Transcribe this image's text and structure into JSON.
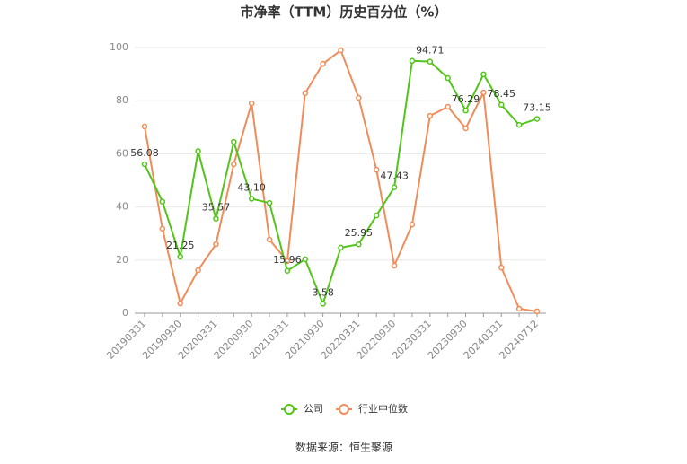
{
  "chart_data": {
    "type": "line",
    "title": "市净率（TTM）历史百分位（%）",
    "categories": [
      "20190331",
      null,
      "20190930",
      null,
      "20200331",
      null,
      "20200930",
      null,
      "20210331",
      null,
      "20210930",
      null,
      "20220331",
      null,
      "20220930",
      null,
      "20230331",
      null,
      "20230930",
      null,
      "20240331",
      null,
      "20240712"
    ],
    "series": [
      {
        "name": "公司",
        "color": "#52c41a",
        "values": [
          56.08,
          42,
          21.25,
          61,
          35.57,
          64.5,
          43.1,
          41.5,
          15.96,
          20.3,
          3.58,
          24.7,
          25.95,
          36.8,
          47.43,
          95.0,
          94.71,
          88.5,
          76.29,
          89.9,
          78.45,
          70.9,
          73.15
        ],
        "value_labels": [
          "56.08",
          null,
          "21.25",
          null,
          "35.57",
          null,
          "43.10",
          null,
          "15.96",
          null,
          "3.58",
          null,
          "25.95",
          null,
          "47.43",
          null,
          "94.71",
          null,
          "76.29",
          null,
          "78.45",
          null,
          "73.15"
        ]
      },
      {
        "name": "行业中位数",
        "color": "#f08c5a",
        "values": [
          70.3,
          31.8,
          3.7,
          16.2,
          26,
          56.1,
          79,
          27.7,
          19.6,
          82.8,
          93.9,
          99,
          81.1,
          54,
          17.9,
          33.4,
          74.3,
          77.7,
          69.6,
          83.1,
          17.2,
          1.7,
          0.7
        ]
      }
    ],
    "ylim": [
      0,
      100
    ],
    "yticks": [
      0,
      20,
      40,
      60,
      80,
      100
    ],
    "grid": true,
    "legend": "bottom",
    "source": "数据来源：恒生聚源"
  }
}
